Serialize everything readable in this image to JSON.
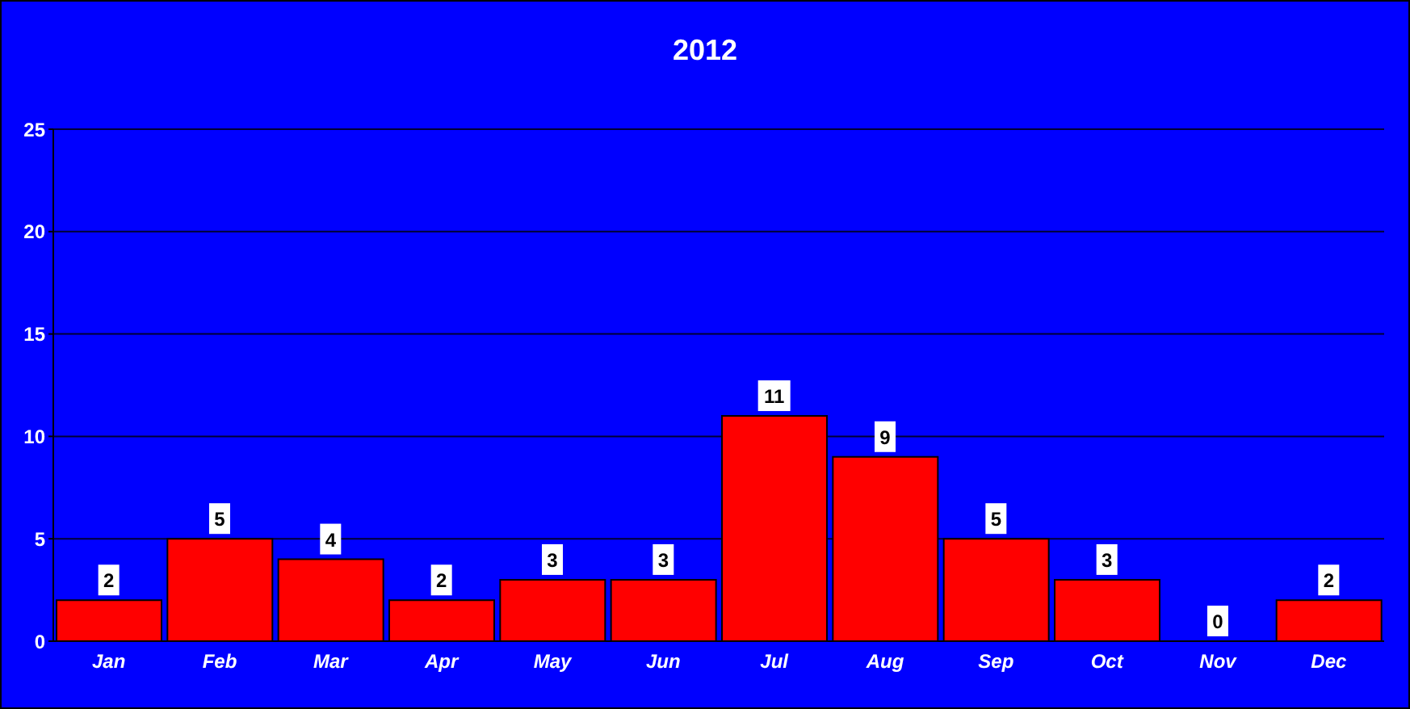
{
  "chart_data": {
    "type": "bar",
    "title": "2012",
    "categories": [
      "Jan",
      "Feb",
      "Mar",
      "Apr",
      "May",
      "Jun",
      "Jul",
      "Aug",
      "Sep",
      "Oct",
      "Nov",
      "Dec"
    ],
    "values": [
      2,
      5,
      4,
      2,
      3,
      3,
      11,
      9,
      5,
      3,
      0,
      2
    ],
    "color": "#ff0000",
    "ylim": [
      0,
      25
    ],
    "yticks": [
      0,
      5,
      10,
      15,
      20,
      25
    ],
    "grid": "y",
    "data_labels": true
  }
}
